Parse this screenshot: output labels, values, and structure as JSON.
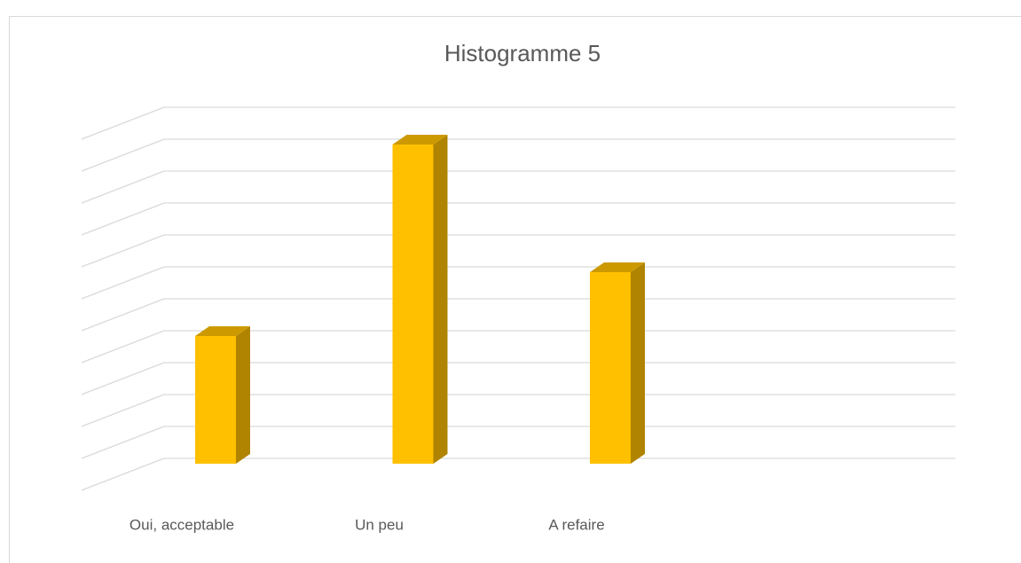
{
  "chart_data": {
    "type": "bar3d",
    "title": "Histogramme 5",
    "categories": [
      "Oui, acceptable",
      "Un peu",
      "A refaire"
    ],
    "values": [
      4,
      10,
      6
    ],
    "color": "#ffc000",
    "ylim": [
      0,
      11
    ],
    "yticks": [
      0,
      1,
      2,
      3,
      4,
      5,
      6,
      7,
      8,
      9,
      10,
      11
    ],
    "grid": true,
    "tick_labels": false
  }
}
